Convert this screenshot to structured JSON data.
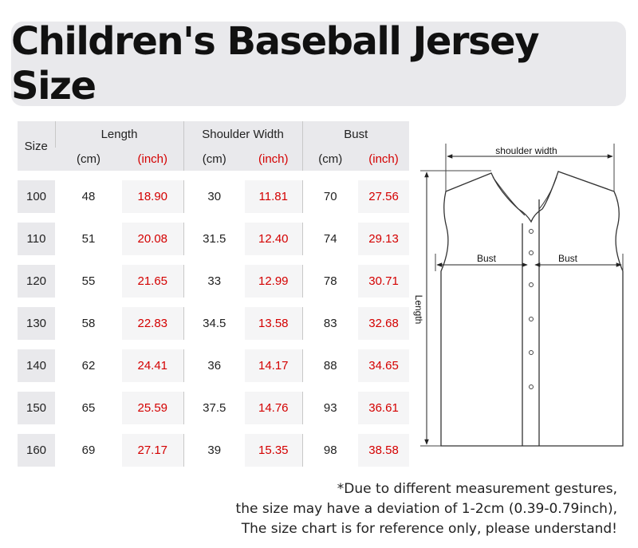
{
  "title": "Children's Baseball Jersey Size",
  "table": {
    "headers": {
      "size": "Size",
      "length": "Length",
      "shoulder_width": "Shoulder Width",
      "bust": "Bust"
    },
    "units": [
      "(cm)",
      "(inch)",
      "(cm)",
      "(inch)",
      "(cm)",
      "(inch)"
    ],
    "rows": [
      {
        "size": "100",
        "length_cm": "48",
        "length_in": "18.90",
        "shoulder_cm": "30",
        "shoulder_in": "11.81",
        "bust_cm": "70",
        "bust_in": "27.56"
      },
      {
        "size": "110",
        "length_cm": "51",
        "length_in": "20.08",
        "shoulder_cm": "31.5",
        "shoulder_in": "12.40",
        "bust_cm": "74",
        "bust_in": "29.13"
      },
      {
        "size": "120",
        "length_cm": "55",
        "length_in": "21.65",
        "shoulder_cm": "33",
        "shoulder_in": "12.99",
        "bust_cm": "78",
        "bust_in": "30.71"
      },
      {
        "size": "130",
        "length_cm": "58",
        "length_in": "22.83",
        "shoulder_cm": "34.5",
        "shoulder_in": "13.58",
        "bust_cm": "83",
        "bust_in": "32.68"
      },
      {
        "size": "140",
        "length_cm": "62",
        "length_in": "24.41",
        "shoulder_cm": "36",
        "shoulder_in": "14.17",
        "bust_cm": "88",
        "bust_in": "34.65"
      },
      {
        "size": "150",
        "length_cm": "65",
        "length_in": "25.59",
        "shoulder_cm": "37.5",
        "shoulder_in": "14.76",
        "bust_cm": "93",
        "bust_in": "36.61"
      },
      {
        "size": "160",
        "length_cm": "69",
        "length_in": "27.17",
        "shoulder_cm": "39",
        "shoulder_in": "15.35",
        "bust_cm": "98",
        "bust_in": "38.58"
      }
    ]
  },
  "diagram": {
    "shoulder_label": "shoulder width",
    "bust_left_label": "Bust",
    "bust_right_label": "Bust",
    "length_label": "Length"
  },
  "note": {
    "line1": "*Due to different measurement gestures,",
    "line2": "the size may have a deviation of 1-2cm (0.39-0.79inch),",
    "line3": "The size chart is for reference only, please understand!"
  },
  "colors": {
    "inch_value": "#d40000",
    "header_bg": "#e9e9ec",
    "title_bg": "#e9e9ec"
  }
}
